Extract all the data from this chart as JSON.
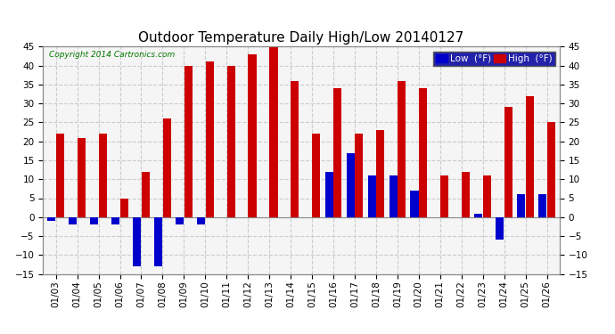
{
  "title": "Outdoor Temperature Daily High/Low 20140127",
  "copyright": "Copyright 2014 Cartronics.com",
  "legend_low": "Low  (°F)",
  "legend_high": "High  (°F)",
  "low_color": "#0000cc",
  "high_color": "#cc0000",
  "background_color": "#ffffff",
  "plot_bg_color": "#f5f5f5",
  "grid_color": "#cccccc",
  "ylim": [
    -15.0,
    45.0
  ],
  "yticks": [
    -15.0,
    -10.0,
    -5.0,
    0.0,
    5.0,
    10.0,
    15.0,
    20.0,
    25.0,
    30.0,
    35.0,
    40.0,
    45.0
  ],
  "dates": [
    "01/03",
    "01/04",
    "01/05",
    "01/06",
    "01/07",
    "01/08",
    "01/09",
    "01/10",
    "01/11",
    "01/12",
    "01/13",
    "01/14",
    "01/15",
    "01/16",
    "01/17",
    "01/18",
    "01/19",
    "01/20",
    "01/21",
    "01/22",
    "01/23",
    "01/24",
    "01/25",
    "01/26"
  ],
  "highs": [
    22,
    21,
    22,
    5,
    12,
    26,
    40,
    41,
    40,
    43,
    46,
    36,
    22,
    34,
    22,
    23,
    36,
    34,
    11,
    12,
    11,
    29,
    32,
    25
  ],
  "lows": [
    -1,
    -2,
    -2,
    -2,
    -13,
    -13,
    -2,
    -2,
    0,
    0,
    0,
    0,
    0,
    12,
    17,
    11,
    11,
    7,
    0,
    0,
    1,
    -6,
    6,
    6
  ]
}
